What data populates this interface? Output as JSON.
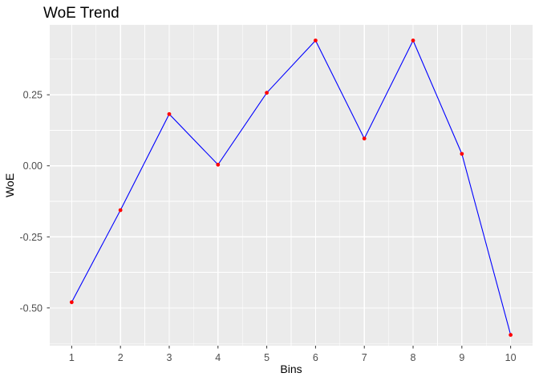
{
  "chart_data": {
    "type": "line",
    "title": "WoE Trend",
    "xlabel": "Bins",
    "ylabel": "WoE",
    "x": [
      1,
      2,
      3,
      4,
      5,
      6,
      7,
      8,
      9,
      10
    ],
    "values": [
      -0.48,
      -0.156,
      0.182,
      0.004,
      0.257,
      0.441,
      0.096,
      0.441,
      0.042,
      -0.595
    ],
    "xlim": [
      0.55,
      10.45
    ],
    "ylim": [
      -0.633,
      0.496
    ],
    "x_ticks": {
      "values": [
        1,
        2,
        3,
        4,
        5,
        6,
        7,
        8,
        9,
        10
      ],
      "labels": [
        "1",
        "2",
        "3",
        "4",
        "5",
        "6",
        "7",
        "8",
        "9",
        "10"
      ]
    },
    "y_ticks": {
      "values": [
        0.25,
        0.0,
        -0.25,
        -0.5
      ],
      "labels": [
        "0.25",
        "0.00",
        "-0.25",
        "-0.50"
      ]
    },
    "x_minor": [
      1.5,
      2.5,
      3.5,
      4.5,
      5.5,
      6.5,
      7.5,
      8.5,
      9.5
    ],
    "y_minor": [
      0.375,
      0.125,
      -0.125,
      -0.375,
      -0.625
    ],
    "grid": true,
    "legend": "none",
    "style": {
      "line_color": "#0000FF",
      "point_color": "#FF0000",
      "panel_bg": "#EBEBEB",
      "grid_color": "#FFFFFF",
      "tick_color": "#333333",
      "tick_label_color": "#4D4D4D",
      "text_color": "#000000",
      "plot_bg": "#FFFFFF"
    }
  }
}
